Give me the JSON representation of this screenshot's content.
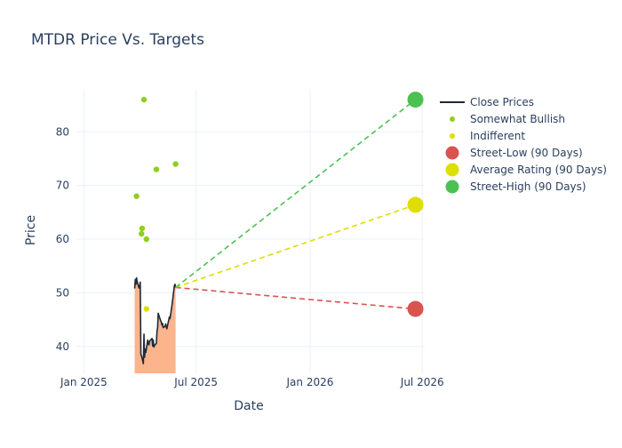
{
  "chart_data": {
    "type": "line",
    "title": "MTDR Price Vs. Targets",
    "xlabel": "Date",
    "ylabel": "Price",
    "x_range": [
      "2024-12-20",
      "2026-07-05"
    ],
    "y_range": [
      35,
      88
    ],
    "x_ticks": [
      {
        "date": "2025-01-01",
        "label": "Jan 2025"
      },
      {
        "date": "2025-07-01",
        "label": "Jul 2025"
      },
      {
        "date": "2026-01-01",
        "label": "Jan 2026"
      },
      {
        "date": "2026-07-01",
        "label": "Jul 2026"
      }
    ],
    "y_ticks": [
      40,
      50,
      60,
      70,
      80
    ],
    "grid": true,
    "legend_position": "right",
    "close_prices": {
      "name": "Close Prices",
      "color": "#1f2a3a",
      "fill_color": "#fbb48c",
      "points": [
        [
          "2025-03-24",
          50.8
        ],
        [
          "2025-03-25",
          52.5
        ],
        [
          "2025-03-26",
          51.6
        ],
        [
          "2025-03-27",
          52.8
        ],
        [
          "2025-03-28",
          52.1
        ],
        [
          "2025-03-31",
          50.9
        ],
        [
          "2025-04-01",
          51.2
        ],
        [
          "2025-04-02",
          52.0
        ],
        [
          "2025-04-03",
          38.5
        ],
        [
          "2025-04-04",
          38.3
        ],
        [
          "2025-04-07",
          36.8
        ],
        [
          "2025-04-08",
          42.3
        ],
        [
          "2025-04-09",
          38.0
        ],
        [
          "2025-04-10",
          39.5
        ],
        [
          "2025-04-11",
          38.9
        ],
        [
          "2025-04-14",
          41.2
        ],
        [
          "2025-04-15",
          40.5
        ],
        [
          "2025-04-16",
          40.3
        ],
        [
          "2025-04-17",
          41.0
        ],
        [
          "2025-04-21",
          41.5
        ],
        [
          "2025-04-22",
          40.1
        ],
        [
          "2025-04-23",
          41.2
        ],
        [
          "2025-04-24",
          39.9
        ],
        [
          "2025-04-25",
          40.2
        ],
        [
          "2025-04-28",
          40.6
        ],
        [
          "2025-04-29",
          42.8
        ],
        [
          "2025-04-30",
          43.5
        ],
        [
          "2025-05-01",
          46.2
        ],
        [
          "2025-05-02",
          45.8
        ],
        [
          "2025-05-05",
          44.8
        ],
        [
          "2025-05-06",
          44.5
        ],
        [
          "2025-05-07",
          44.0
        ],
        [
          "2025-05-08",
          44.3
        ],
        [
          "2025-05-09",
          43.5
        ],
        [
          "2025-05-12",
          43.8
        ],
        [
          "2025-05-13",
          44.2
        ],
        [
          "2025-05-14",
          43.6
        ],
        [
          "2025-05-15",
          43.3
        ],
        [
          "2025-05-16",
          43.9
        ],
        [
          "2025-05-19",
          45.5
        ],
        [
          "2025-05-20",
          45.2
        ],
        [
          "2025-05-21",
          45.9
        ],
        [
          "2025-05-22",
          46.8
        ],
        [
          "2025-05-23",
          47.5
        ],
        [
          "2025-05-27",
          51.3
        ],
        [
          "2025-05-28",
          51.6
        ],
        [
          "2025-05-29",
          51.0
        ]
      ]
    },
    "analyst_ratings": [
      {
        "name": "Somewhat Bullish",
        "color": "#8fcf1e",
        "points": [
          [
            "2025-03-27",
            68
          ],
          [
            "2025-04-04",
            61
          ],
          [
            "2025-04-05",
            62
          ],
          [
            "2025-04-08",
            86
          ],
          [
            "2025-04-12",
            60
          ],
          [
            "2025-04-28",
            73
          ],
          [
            "2025-05-29",
            74
          ]
        ]
      },
      {
        "name": "Indifferent",
        "color": "#dede00",
        "points": [
          [
            "2025-04-12",
            47
          ]
        ]
      }
    ],
    "targets": [
      {
        "name": "Street-Low (90 Days)",
        "color": "#d9534f",
        "value": 47.0,
        "date": "2026-06-20"
      },
      {
        "name": "Average Rating (90 Days)",
        "color": "#dede00",
        "value": 66.4,
        "date": "2026-06-20"
      },
      {
        "name": "Street-High (90 Days)",
        "color": "#4cc152",
        "value": 86.0,
        "date": "2026-06-20"
      }
    ],
    "legend": [
      {
        "label": "Close Prices",
        "kind": "line",
        "color": "#1f2a3a"
      },
      {
        "label": "Somewhat Bullish",
        "kind": "small-dot",
        "color": "#8fcf1e"
      },
      {
        "label": "Indifferent",
        "kind": "small-dot",
        "color": "#dede00"
      },
      {
        "label": "Street-Low (90 Days)",
        "kind": "big-dot",
        "color": "#d9534f"
      },
      {
        "label": "Average Rating (90 Days)",
        "kind": "big-dot",
        "color": "#dede00"
      },
      {
        "label": "Street-High (90 Days)",
        "kind": "big-dot",
        "color": "#4cc152"
      }
    ]
  }
}
